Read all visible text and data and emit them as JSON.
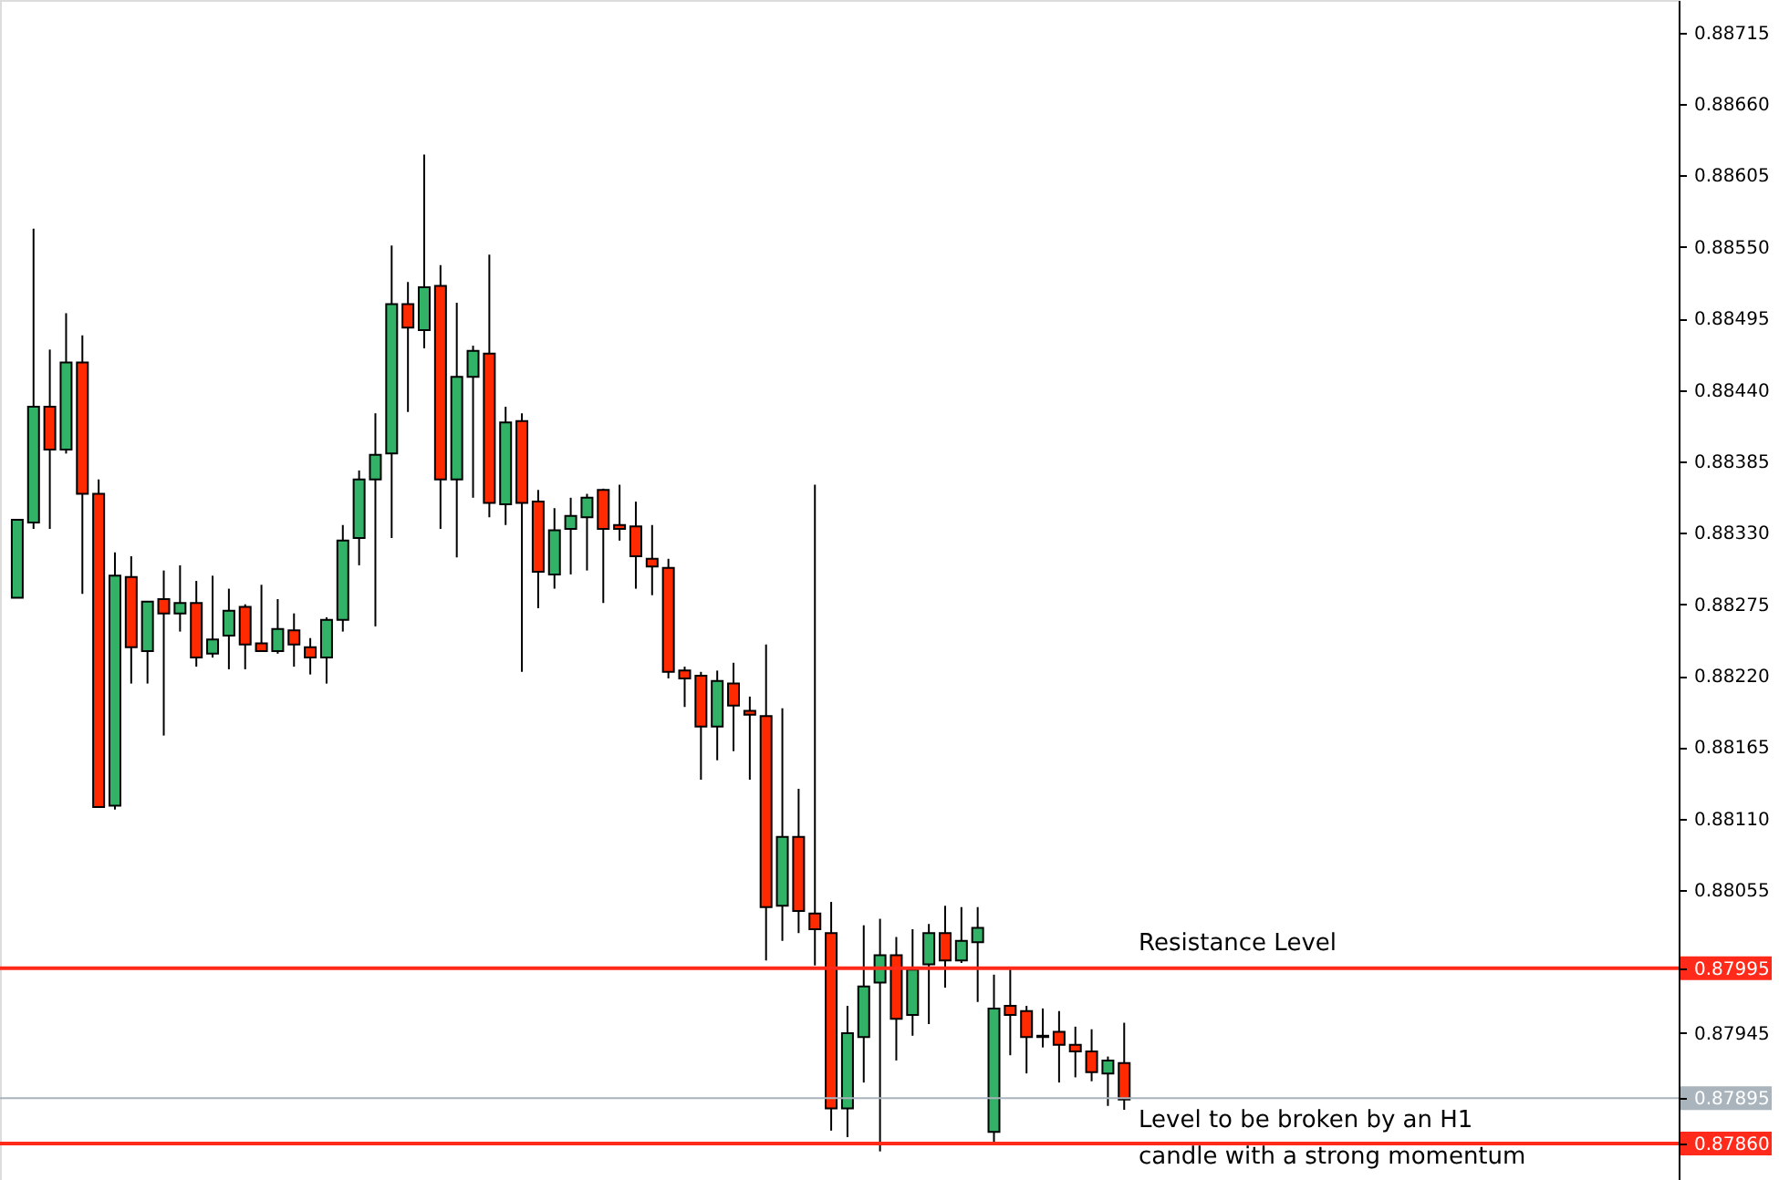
{
  "chart_data": {
    "type": "candlestick",
    "categories": [
      null,
      null,
      null,
      null,
      null,
      null,
      null,
      null,
      null,
      null,
      null,
      null,
      null,
      null,
      null,
      null,
      null,
      null,
      null,
      null,
      null,
      null,
      null,
      null,
      null,
      null,
      null,
      null,
      null,
      null,
      null,
      null,
      null,
      null,
      null,
      null,
      null,
      null,
      null,
      null,
      null,
      null,
      null,
      null,
      null,
      null,
      null,
      null,
      null,
      null,
      null,
      null,
      null,
      null,
      null,
      null,
      null,
      null,
      null,
      null,
      null,
      null,
      null,
      null,
      null,
      null,
      null,
      null,
      null,
      null,
      null,
      null,
      null,
      null,
      null,
      null,
      null,
      null,
      null,
      null,
      null,
      null,
      null,
      null,
      null,
      null,
      null,
      null,
      null,
      null,
      null,
      null,
      null,
      null,
      null,
      null,
      null,
      null,
      null,
      null,
      null,
      null
    ],
    "ohlc": [
      [
        0.8828,
        0.8834,
        0.8828,
        0.8834
      ],
      [
        0.88338,
        0.88564,
        0.88333,
        0.88427
      ],
      [
        0.88427,
        0.88471,
        0.88333,
        0.88394
      ],
      [
        0.88394,
        0.88499,
        0.88391,
        0.88461
      ],
      [
        0.88461,
        0.88482,
        0.88283,
        0.8836
      ],
      [
        0.8836,
        0.88371,
        0.88119,
        0.88119
      ],
      [
        0.8812,
        0.88315,
        0.88117,
        0.88297
      ],
      [
        0.88296,
        0.88312,
        0.88214,
        0.88242
      ],
      [
        0.88239,
        0.88277,
        0.88214,
        0.88277
      ],
      [
        0.88279,
        0.88301,
        0.88174,
        0.88268
      ],
      [
        0.88268,
        0.88305,
        0.88254,
        0.88276
      ],
      [
        0.88276,
        0.88293,
        0.88227,
        0.88234
      ],
      [
        0.88237,
        0.88297,
        0.88234,
        0.88248
      ],
      [
        0.88251,
        0.88287,
        0.88225,
        0.8827
      ],
      [
        0.88273,
        0.88275,
        0.88225,
        0.88244
      ],
      [
        0.88245,
        0.8829,
        0.88239,
        0.88239
      ],
      [
        0.88239,
        0.88279,
        0.88237,
        0.88256
      ],
      [
        0.88255,
        0.88268,
        0.88227,
        0.88244
      ],
      [
        0.88242,
        0.88249,
        0.88221,
        0.88234
      ],
      [
        0.88234,
        0.88265,
        0.88214,
        0.88263
      ],
      [
        0.88263,
        0.88336,
        0.88254,
        0.88324
      ],
      [
        0.88326,
        0.88378,
        0.88305,
        0.88371
      ],
      [
        0.88371,
        0.88422,
        0.88258,
        0.8839
      ],
      [
        0.88391,
        0.88551,
        0.88326,
        0.88506
      ],
      [
        0.88506,
        0.88523,
        0.88423,
        0.88488
      ],
      [
        0.88486,
        0.88621,
        0.88472,
        0.88519
      ],
      [
        0.8852,
        0.88536,
        0.88333,
        0.88371
      ],
      [
        0.88371,
        0.88507,
        0.88311,
        0.8845
      ],
      [
        0.8845,
        0.88474,
        0.88357,
        0.8847
      ],
      [
        0.88468,
        0.88544,
        0.88342,
        0.88353
      ],
      [
        0.88352,
        0.88427,
        0.88336,
        0.88415
      ],
      [
        0.88416,
        0.88422,
        0.88223,
        0.88353
      ],
      [
        0.88354,
        0.88363,
        0.88272,
        0.883
      ],
      [
        0.88298,
        0.88349,
        0.88287,
        0.88332
      ],
      [
        0.88333,
        0.88357,
        0.88298,
        0.88343
      ],
      [
        0.88342,
        0.8836,
        0.88301,
        0.88357
      ],
      [
        0.88363,
        0.88364,
        0.88276,
        0.88333
      ],
      [
        0.88336,
        0.88367,
        0.88324,
        0.88333
      ],
      [
        0.88335,
        0.88354,
        0.88287,
        0.88312
      ],
      [
        0.8831,
        0.88336,
        0.88282,
        0.88304
      ],
      [
        0.88303,
        0.8831,
        0.88218,
        0.88223
      ],
      [
        0.88224,
        0.88227,
        0.88196,
        0.88218
      ],
      [
        0.8822,
        0.88223,
        0.8814,
        0.88181
      ],
      [
        0.88181,
        0.88224,
        0.88155,
        0.88216
      ],
      [
        0.88214,
        0.8823,
        0.88162,
        0.88197
      ],
      [
        0.88193,
        0.88204,
        0.8814,
        0.8819
      ],
      [
        0.88189,
        0.88244,
        0.88001,
        0.88042
      ],
      [
        0.88043,
        0.88195,
        0.88016,
        0.88096
      ],
      [
        0.88096,
        0.88133,
        0.88022,
        0.88039
      ],
      [
        0.88037,
        0.88367,
        0.87997,
        0.88025
      ],
      [
        0.88022,
        0.88046,
        0.8787,
        0.87887
      ],
      [
        0.87887,
        0.87966,
        0.87865,
        0.87945
      ],
      [
        0.87942,
        0.88028,
        0.87907,
        0.87981
      ],
      [
        0.87984,
        0.88033,
        0.87854,
        0.88005
      ],
      [
        0.88005,
        0.88019,
        0.87924,
        0.87956
      ],
      [
        0.87959,
        0.88025,
        0.87943,
        0.87994
      ],
      [
        0.87998,
        0.88029,
        0.87952,
        0.88022
      ],
      [
        0.88022,
        0.88043,
        0.8798,
        0.88001
      ],
      [
        0.88001,
        0.88042,
        0.87999,
        0.88016
      ],
      [
        0.88015,
        0.88042,
        0.87969,
        0.88026
      ],
      [
        0.87869,
        0.8799,
        0.87861,
        0.87964
      ],
      [
        0.87966,
        0.87994,
        0.87928,
        0.87959
      ],
      [
        0.87962,
        0.87966,
        0.87914,
        0.87942
      ],
      [
        0.87943,
        0.87964,
        0.87934,
        0.87942
      ],
      [
        0.87946,
        0.87962,
        0.87907,
        0.87936
      ],
      [
        0.87936,
        0.8795,
        0.87911,
        0.87931
      ],
      [
        0.87931,
        0.87948,
        0.87908,
        0.87915
      ],
      [
        0.87914,
        0.87927,
        0.87889,
        0.87924
      ],
      [
        0.87922,
        0.87953,
        0.87886,
        0.87894
      ],
      null,
      null,
      null,
      null,
      null,
      null,
      null,
      null,
      null,
      null,
      null,
      null,
      null,
      null,
      null,
      null,
      null,
      null,
      null,
      null,
      null,
      null,
      null,
      null,
      null,
      null,
      null,
      null,
      null,
      null,
      null,
      null,
      null
    ],
    "colors": [
      "#32b266",
      "#32b266",
      "#ff2a00",
      "#32b266",
      "#ff2a00",
      "#ff2a00",
      "#32b266",
      "#ff2a00",
      "#32b266",
      "#ff2a00",
      "#32b266",
      "#ff2a00",
      "#32b266",
      "#32b266",
      "#ff2a00",
      "#ff2a00",
      "#32b266",
      "#ff2a00",
      "#ff2a00",
      "#32b266",
      "#32b266",
      "#32b266",
      "#32b266",
      "#32b266",
      "#ff2a00",
      "#32b266",
      "#ff2a00",
      "#32b266",
      "#32b266",
      "#ff2a00",
      "#32b266",
      "#ff2a00",
      "#ff2a00",
      "#32b266",
      "#32b266",
      "#32b266",
      "#ff2a00",
      "#ff2a00",
      "#ff2a00",
      "#ff2a00",
      "#ff2a00",
      "#ff2a00",
      "#ff2a00",
      "#32b266",
      "#ff2a00",
      "#ff2a00",
      "#ff2a00",
      "#32b266",
      "#ff2a00",
      "#ff2a00",
      "#ff2a00",
      "#32b266",
      "#32b266",
      "#32b266",
      "#ff2a00",
      "#32b266",
      "#32b266",
      "#ff2a00",
      "#32b266",
      "#32b266",
      "#32b266",
      "#ff2a00",
      "#ff2a00",
      "#ff2a00",
      "#ff2a00",
      "#ff2a00",
      "#ff2a00",
      "#32b266",
      "#ff2a00",
      null,
      null,
      null,
      null,
      null,
      null,
      null,
      null,
      null,
      null,
      null,
      null,
      null,
      null,
      null,
      null,
      null,
      null,
      null,
      null,
      null,
      null,
      null,
      null,
      null,
      null,
      null,
      null,
      null,
      null,
      null,
      null,
      null
    ],
    "ylim": [
      0.87832,
      0.8874
    ],
    "yticks": [
      0.88715,
      {
        "value": 0.8866,
        "label": "0.88660"
      },
      0.88605,
      {
        "value": 0.8855,
        "label": "0.88550"
      },
      0.88495,
      {
        "value": 0.8844,
        "label": "0.88440"
      },
      0.88385,
      {
        "value": 0.8833,
        "label": "0.88330"
      },
      0.88275,
      {
        "value": 0.8822,
        "label": "0.88220"
      },
      0.88165,
      {
        "value": 0.8811,
        "label": "0.88110"
      },
      0.88055,
      0.87995,
      0.87945,
      0.87895,
      {
        "value": 0.8786,
        "label": "0.87860"
      }
    ],
    "ref_lines": [
      {
        "axis": "y",
        "value": 0.87995,
        "label": "Resistance Level",
        "color": "#ff2a1a"
      },
      {
        "axis": "y",
        "value": 0.87895,
        "label": "Level to be broken by an H1\ncandle with a strong momentum",
        "color": "#a9b4bd"
      },
      {
        "axis": "y",
        "value": 0.8786,
        "label": null,
        "color": "#ff2a1a"
      }
    ],
    "grid": false
  }
}
